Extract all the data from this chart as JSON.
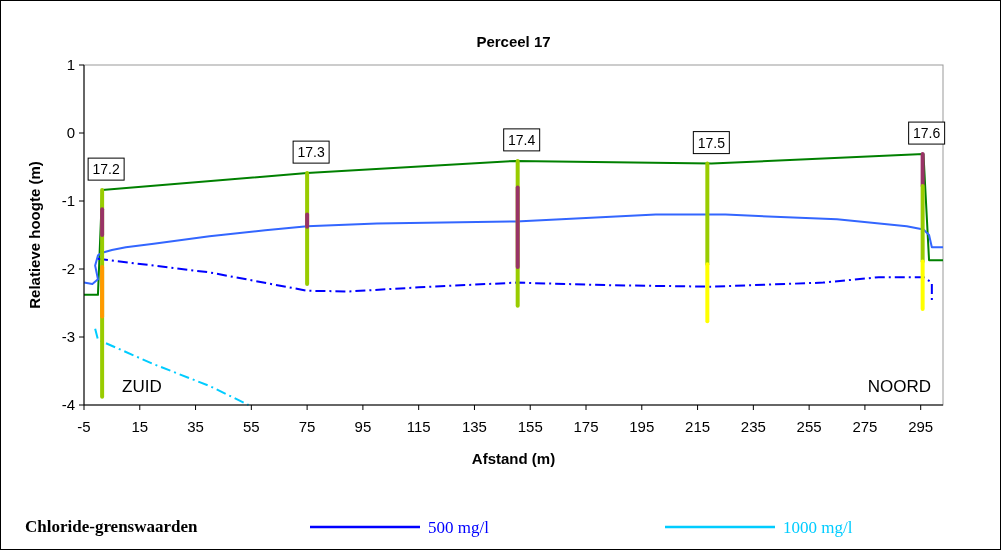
{
  "chart_data": {
    "type": "line",
    "title": "Perceel 17",
    "xlabel": "Afstand (m)",
    "ylabel": "Relatieve hoogte (m)",
    "legend_title": "Chloride-grenswaarden",
    "legend": "bottom",
    "grid": false,
    "marker": "none",
    "xlim": [
      -5,
      303
    ],
    "xticks": [
      -5,
      15,
      35,
      55,
      75,
      95,
      115,
      135,
      155,
      175,
      195,
      215,
      235,
      255,
      275,
      295
    ],
    "ylim": [
      -4,
      1
    ],
    "yticks": [
      -4,
      -3,
      -2,
      -1,
      0,
      1
    ],
    "series": [
      {
        "color": "#008000",
        "line_style": "solid",
        "x": [
          -5,
          0,
          1.5,
          75,
          150,
          220,
          296,
          298,
          303
        ],
        "values": [
          -2.38,
          -2.38,
          -0.84,
          -0.59,
          -0.41,
          -0.45,
          -0.31,
          -1.87,
          -1.87
        ]
      },
      {
        "color": "#3366ff",
        "line_style": "solid",
        "x": [
          -5,
          -2,
          0,
          -1,
          0,
          1.5,
          5,
          10,
          20,
          40,
          60,
          75,
          100,
          150,
          175,
          200,
          225,
          265,
          290,
          296,
          298,
          299,
          303
        ],
        "values": [
          -2.2,
          -2.22,
          -2.15,
          -1.95,
          -1.8,
          -1.76,
          -1.72,
          -1.68,
          -1.63,
          -1.52,
          -1.43,
          -1.37,
          -1.33,
          -1.3,
          -1.25,
          -1.2,
          -1.2,
          -1.27,
          -1.37,
          -1.42,
          -1.5,
          -1.68,
          -1.68
        ]
      },
      {
        "name": "500 mg/l",
        "color": "#0000ff",
        "line_style": "dashed",
        "x": [
          0,
          40,
          75,
          90,
          115,
          150,
          185,
          220,
          260,
          280,
          296,
          299,
          299
        ],
        "values": [
          -1.85,
          -2.05,
          -2.32,
          -2.33,
          -2.27,
          -2.2,
          -2.24,
          -2.26,
          -2.2,
          -2.12,
          -2.12,
          -2.2,
          -2.46
        ]
      },
      {
        "name": "1000 mg/l",
        "color": "#00ccff",
        "line_style": "dashed",
        "x": [
          -1,
          0,
          20,
          40,
          54
        ],
        "values": [
          -2.88,
          -3.04,
          -3.4,
          -3.72,
          -4
        ]
      },
      {
        "color": "#99cc00",
        "line_style": "solid",
        "x": [
          1.5,
          1.5
        ],
        "values": [
          -0.84,
          -3.88
        ]
      },
      {
        "color": "#993366",
        "line_style": "solid",
        "x": [
          1.5,
          1.5
        ],
        "values": [
          -1.12,
          -1.5
        ]
      },
      {
        "color": "#ff9900",
        "line_style": "solid",
        "x": [
          1.5,
          1.5
        ],
        "values": [
          -1.97,
          -2.7
        ]
      },
      {
        "color": "#99cc00",
        "line_style": "solid",
        "x": [
          75,
          75
        ],
        "values": [
          -0.59,
          -2.22
        ]
      },
      {
        "color": "#993366",
        "line_style": "solid",
        "x": [
          75,
          75
        ],
        "values": [
          -1.2,
          -1.38
        ]
      },
      {
        "color": "#99cc00",
        "line_style": "solid",
        "x": [
          150.5,
          150.5
        ],
        "values": [
          -0.41,
          -2.54
        ]
      },
      {
        "color": "#993366",
        "line_style": "solid",
        "x": [
          150.5,
          150.5
        ],
        "values": [
          -0.8,
          -1.97
        ]
      },
      {
        "color": "#99cc00",
        "line_style": "solid",
        "x": [
          218.5,
          218.5
        ],
        "values": [
          -0.45,
          -1.93
        ]
      },
      {
        "color": "#ffff00",
        "line_style": "solid",
        "x": [
          218.5,
          218.5
        ],
        "values": [
          -1.93,
          -2.77
        ]
      },
      {
        "color": "#993366",
        "line_style": "solid",
        "x": [
          295.7,
          295.7
        ],
        "values": [
          -0.31,
          -0.78
        ]
      },
      {
        "color": "#99cc00",
        "line_style": "solid",
        "x": [
          295.7,
          295.7
        ],
        "values": [
          -0.78,
          -1.89
        ]
      },
      {
        "color": "#ffff00",
        "line_style": "solid",
        "x": [
          295.7,
          295.7
        ],
        "values": [
          -1.89,
          -2.59
        ]
      }
    ],
    "annotations": [
      {
        "text": "17.2",
        "x": 1.5,
        "y": -0.84
      },
      {
        "text": "17.3",
        "x": 75,
        "y": -0.59
      },
      {
        "text": "17.4",
        "x": 150.5,
        "y": -0.41
      },
      {
        "text": "17.5",
        "x": 218.5,
        "y": -0.45
      },
      {
        "text": "17.6",
        "x": 295.7,
        "y": -0.31
      },
      "ZUID",
      "NOORD"
    ]
  }
}
